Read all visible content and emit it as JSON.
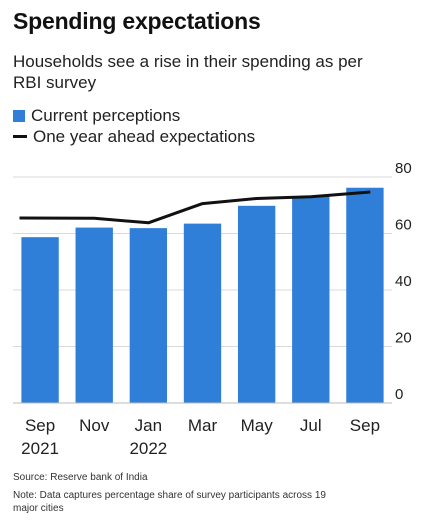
{
  "title": "Spending expectations",
  "subtitle": "Households see a rise in their spending as per RBI survey",
  "legend": {
    "bars": "Current perceptions",
    "line": "One year ahead expectations"
  },
  "colors": {
    "bar": "#2f7fd8",
    "line": "#111111",
    "grid": "#d9d9d9"
  },
  "chart_data": {
    "type": "bar",
    "categories": [
      "Sep 2021",
      "Nov",
      "Jan 2022",
      "Mar",
      "May",
      "Jul",
      "Sep"
    ],
    "x_tick_labels": [
      [
        "Sep",
        "2021"
      ],
      [
        "Nov"
      ],
      [
        "Jan",
        "2022"
      ],
      [
        "Mar"
      ],
      [
        "May"
      ],
      [
        "Jul"
      ],
      [
        "Sep"
      ]
    ],
    "series": [
      {
        "name": "Current perceptions",
        "type": "bar",
        "values": [
          58.7,
          62.1,
          61.9,
          63.5,
          69.8,
          73.2,
          76.2
        ]
      },
      {
        "name": "One year ahead expectations",
        "type": "line",
        "values": [
          65.5,
          65.4,
          63.8,
          70.6,
          72.4,
          73.0,
          74.7
        ]
      }
    ],
    "ylim": [
      0,
      80
    ],
    "y_ticks": [
      0,
      20,
      40,
      60,
      80
    ],
    "y_axis_side": "right",
    "grid": true
  },
  "source": "Source: Reserve bank of India",
  "note": "Note: Data captures percentage share of survey participants across 19 major cities"
}
